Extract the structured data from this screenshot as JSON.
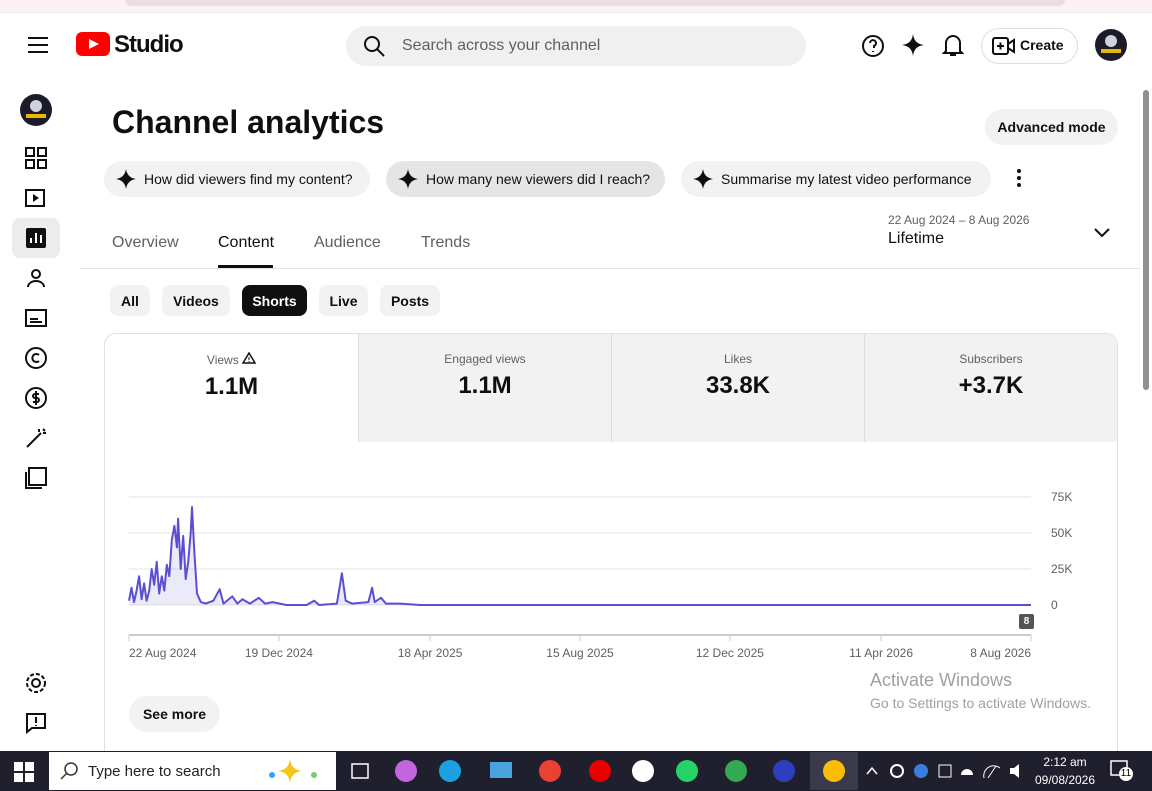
{
  "header": {
    "logo": "Studio",
    "search_placeholder": "Search across your channel",
    "create": "Create"
  },
  "title": "Channel analytics",
  "advanced_mode": "Advanced mode",
  "suggestions": [
    "How did viewers find my content?",
    "How many new viewers did I reach?",
    "Summarise my latest video performance"
  ],
  "date_range": "22 Aug 2024 – 8 Aug 2026",
  "period": "Lifetime",
  "tabs": [
    "Overview",
    "Content",
    "Audience",
    "Trends"
  ],
  "filters": [
    "All",
    "Videos",
    "Shorts",
    "Live",
    "Posts"
  ],
  "metrics": [
    {
      "label": "Views",
      "value": "1.1M"
    },
    {
      "label": "Engaged views",
      "value": "1.1M"
    },
    {
      "label": "Likes",
      "value": "33.8K"
    },
    {
      "label": "Subscribers",
      "value": "+3.7K"
    }
  ],
  "chart_data": {
    "type": "line",
    "color": "#5b4fcf",
    "x": [
      "2024-08-22",
      "2024-08-24",
      "2024-08-26",
      "2024-08-28",
      "2024-08-30",
      "2024-09-01",
      "2024-09-03",
      "2024-09-05",
      "2024-09-07",
      "2024-09-09",
      "2024-09-11",
      "2024-09-13",
      "2024-09-15",
      "2024-09-17",
      "2024-09-19",
      "2024-09-21",
      "2024-09-23",
      "2024-09-25",
      "2024-09-27",
      "2024-09-29",
      "2024-09-30",
      "2024-10-02",
      "2024-10-04",
      "2024-10-06",
      "2024-10-08",
      "2024-10-10",
      "2024-10-11",
      "2024-10-13",
      "2024-10-15",
      "2024-10-18",
      "2024-10-22",
      "2024-10-28",
      "2024-11-02",
      "2024-11-05",
      "2024-11-12",
      "2024-11-16",
      "2024-11-20",
      "2024-11-26",
      "2024-12-03",
      "2024-12-08",
      "2024-12-14",
      "2024-12-25",
      "2025-01-10",
      "2025-01-16",
      "2025-01-20",
      "2025-02-03",
      "2025-02-07",
      "2025-02-10",
      "2025-02-15",
      "2025-02-28",
      "2025-03-03",
      "2025-03-05",
      "2025-03-10",
      "2025-03-14",
      "2025-03-25",
      "2025-04-10",
      "2026-08-08"
    ],
    "values": [
      3000,
      12000,
      2000,
      10000,
      20000,
      4000,
      15000,
      3000,
      10000,
      25000,
      14000,
      30000,
      8000,
      20000,
      10000,
      28000,
      20000,
      45000,
      55000,
      40000,
      60000,
      25000,
      48000,
      18000,
      30000,
      50000,
      68000,
      35000,
      8000,
      2000,
      1000,
      3000,
      11000,
      1000,
      6000,
      1000,
      4000,
      1000,
      5000,
      1000,
      2000,
      0,
      0,
      3000,
      0,
      1000,
      22000,
      3000,
      1000,
      2000,
      12000,
      2000,
      5000,
      1000,
      1000,
      0,
      0
    ],
    "xlim": [
      "2024-08-22",
      "2026-08-08"
    ],
    "xticks": [
      {
        "value": "2024-08-22",
        "label": "22 Aug 2024"
      },
      {
        "value": "2024-12-19",
        "label": "19 Dec 2024"
      },
      {
        "value": "2025-04-18",
        "label": "18 Apr 2025"
      },
      {
        "value": "2025-08-15",
        "label": "15 Aug 2025"
      },
      {
        "value": "2025-12-12",
        "label": "12 Dec 2025"
      },
      {
        "value": "2026-04-11",
        "label": "11 Apr 2026"
      },
      {
        "value": "2026-08-08",
        "label": "8 Aug 2026"
      }
    ],
    "ylim": [
      0,
      75000
    ],
    "yticks": [
      {
        "value": 0,
        "label": "0"
      },
      {
        "value": 25000,
        "label": "25K"
      },
      {
        "value": 50000,
        "label": "50K"
      },
      {
        "value": 75000,
        "label": "75K"
      }
    ],
    "grid": true
  },
  "badge": "8",
  "see_more": "See more",
  "watermark": {
    "title": "Activate Windows",
    "text": "Go to Settings to activate Windows."
  },
  "taskbar": {
    "search": "Type here to search",
    "time": "2:12 am",
    "date": "09/08/2026",
    "notifications": "11"
  }
}
